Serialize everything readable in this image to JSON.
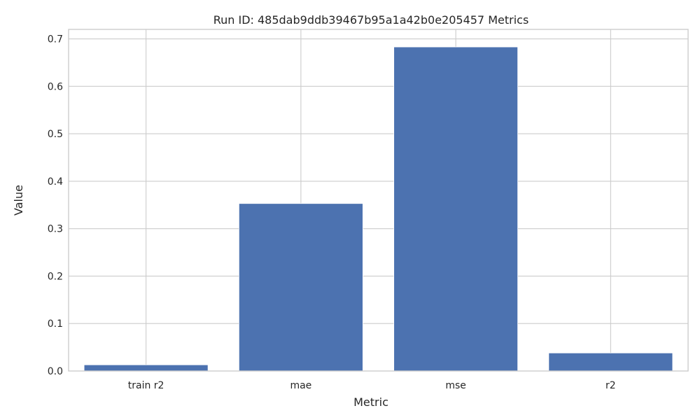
{
  "chart_data": {
    "type": "bar",
    "title": "Run ID: 485dab9ddb39467b95a1a42b0e205457 Metrics",
    "xlabel": "Metric",
    "ylabel": "Value",
    "categories": [
      "train r2",
      "mae",
      "mse",
      "r2"
    ],
    "values": [
      0.013,
      0.353,
      0.683,
      0.038
    ],
    "ylim": [
      0,
      0.72
    ],
    "yticks": [
      "0.0",
      "0.1",
      "0.2",
      "0.3",
      "0.4",
      "0.5",
      "0.6",
      "0.7"
    ],
    "grid": true,
    "bar_color": "#4c72b0",
    "grid_color": "#cccccc"
  }
}
